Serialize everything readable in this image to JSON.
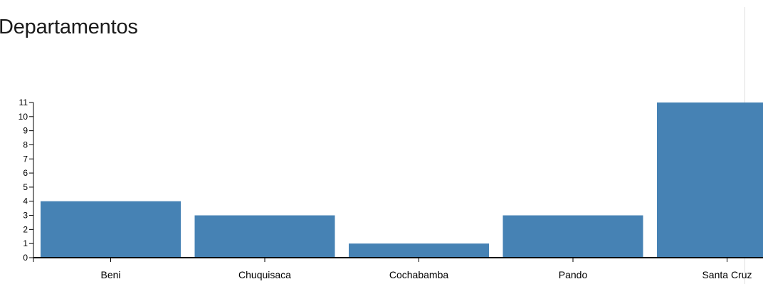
{
  "title": "Departamentos",
  "colors": {
    "bar": "#4682b4",
    "axis": "#000000",
    "divider": "#e0e0e0"
  },
  "chart_data": {
    "type": "bar",
    "title": "Departamentos",
    "xlabel": "",
    "ylabel": "",
    "categories": [
      "Beni",
      "Chuquisaca",
      "Cochabamba",
      "Pando",
      "Santa Cruz"
    ],
    "values": [
      4,
      3,
      1,
      3,
      11
    ],
    "ylim": [
      0,
      11
    ],
    "yticks": [
      0,
      1,
      2,
      3,
      4,
      5,
      6,
      7,
      8,
      9,
      10,
      11
    ],
    "grid": false,
    "legend": "none"
  }
}
